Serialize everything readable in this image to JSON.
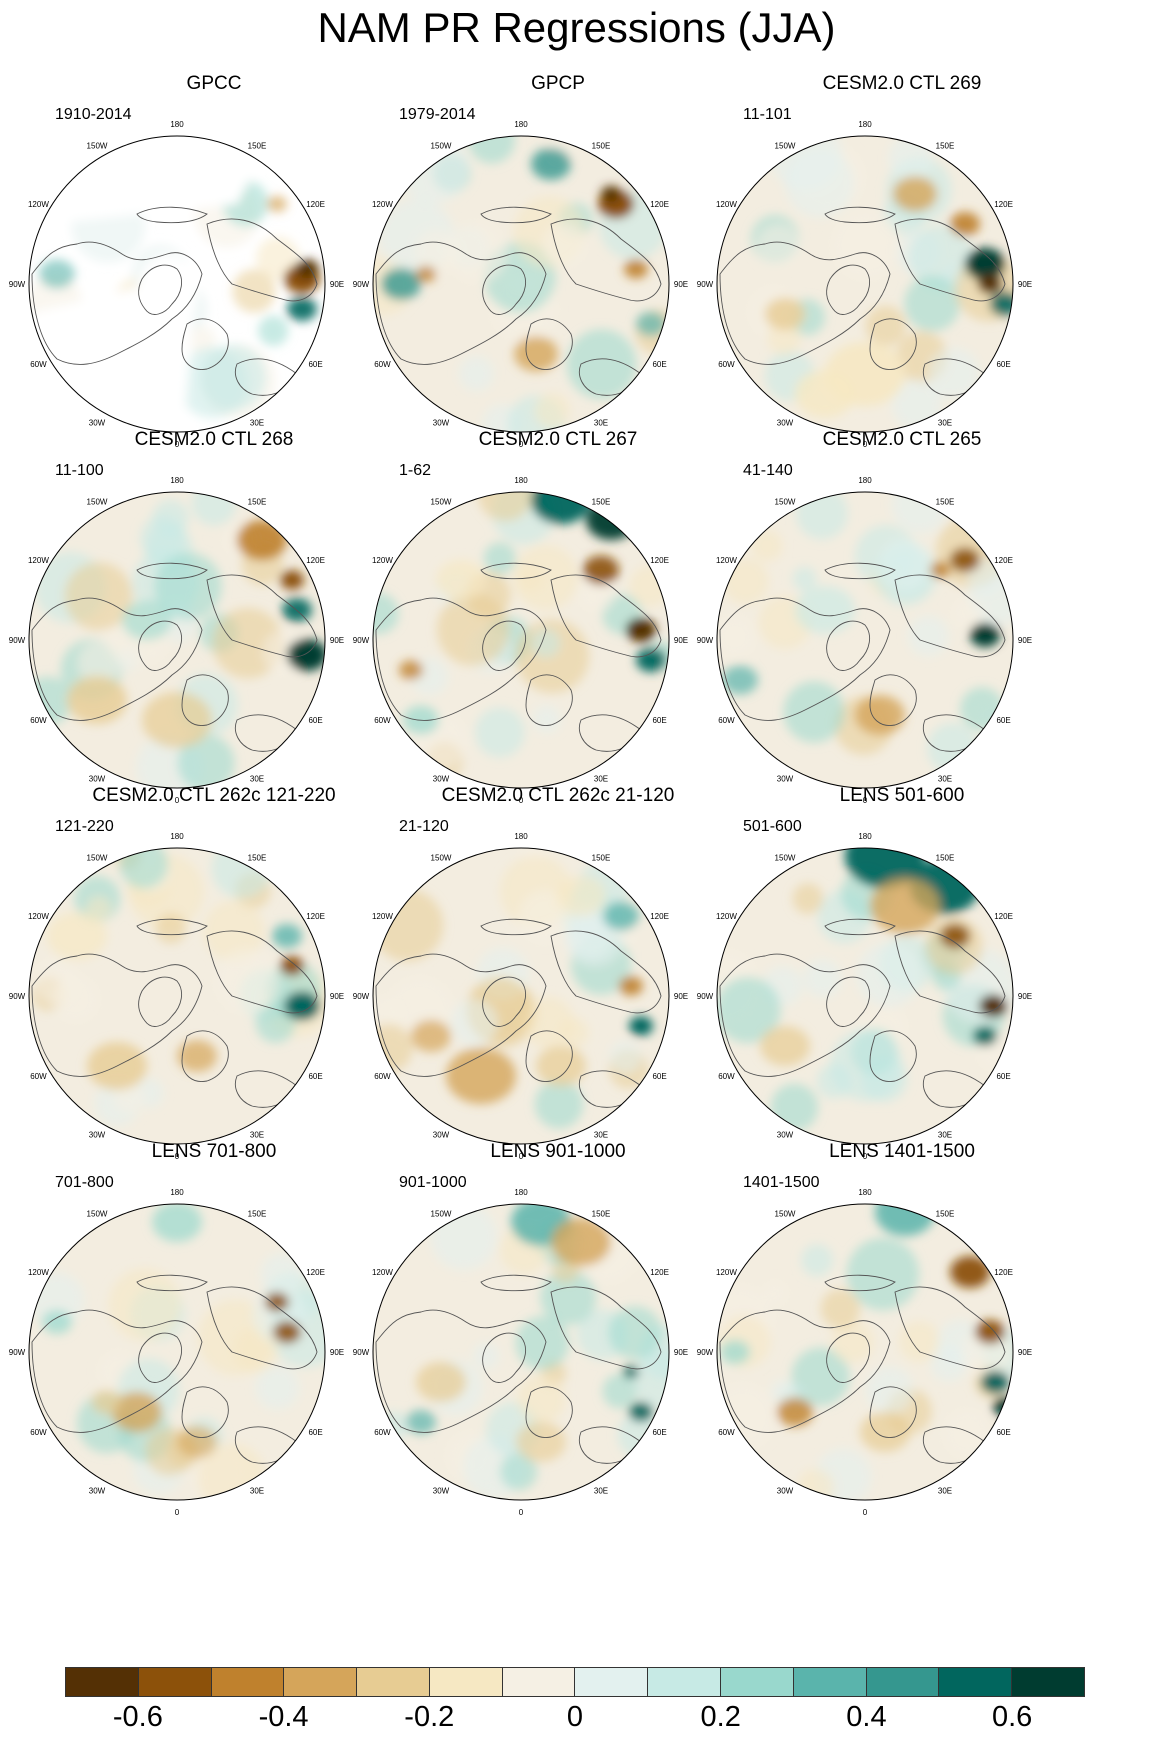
{
  "title": "NAM PR Regressions (JJA)",
  "lon_labels": [
    "180",
    "150E",
    "120E",
    "90E",
    "60E",
    "30E",
    "0",
    "30W",
    "60W",
    "90W",
    "120W",
    "150W"
  ],
  "panels": [
    {
      "title": "GPCC",
      "period": "1910-2014",
      "missing_data": true
    },
    {
      "title": "GPCP",
      "period": "1979-2014"
    },
    {
      "title": "CESM2.0 CTL 269",
      "period": "11-101"
    },
    {
      "title": "CESM2.0 CTL 268",
      "period": "11-100"
    },
    {
      "title": "CESM2.0 CTL 267",
      "period": "1-62"
    },
    {
      "title": "CESM2.0 CTL 265",
      "period": "41-140"
    },
    {
      "title": "CESM2.0 CTL 262c 121-220",
      "period": "121-220"
    },
    {
      "title": "CESM2.0 CTL 262c 21-120",
      "period": "21-120"
    },
    {
      "title": "LENS 501-600",
      "period": "501-600"
    },
    {
      "title": "LENS 701-800",
      "period": "701-800"
    },
    {
      "title": "LENS 901-1000",
      "period": "901-1000"
    },
    {
      "title": "LENS 1401-1500",
      "period": "1401-1500"
    }
  ],
  "colorbar": {
    "colors": [
      "#543005",
      "#8c510a",
      "#bf812d",
      "#d5a55a",
      "#e7cc93",
      "#f6e8c3",
      "#f5f0e4",
      "#e3f1ef",
      "#c7eae5",
      "#99d8cd",
      "#5ab4ac",
      "#35978f",
      "#01665e",
      "#003c30"
    ],
    "labels": [
      "-0.6",
      "-0.4",
      "-0.2",
      "0",
      "0.2",
      "0.4",
      "0.6"
    ],
    "label_values": [
      -0.6,
      -0.4,
      -0.2,
      0,
      0.2,
      0.4,
      0.6
    ],
    "range": [
      -0.7,
      0.7
    ]
  }
}
